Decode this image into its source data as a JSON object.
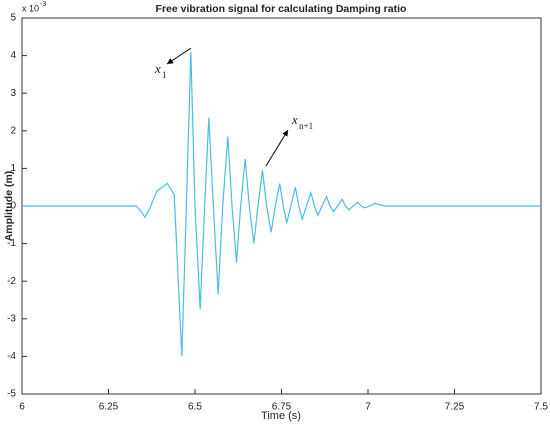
{
  "chart_data": {
    "type": "line",
    "title": "Free vibration signal for calculating Damping ratio",
    "x_label": "Time (s)",
    "y_label": "Amplitude (m)",
    "y_exponent": {
      "base": "x 10",
      "power": "-3"
    },
    "annotations": [
      {
        "text": "x",
        "sub": "1"
      },
      {
        "text": "x",
        "sub": "n+1"
      }
    ],
    "x": [
      6,
      6.05,
      6.1,
      6.15,
      6.2,
      6.25,
      6.3,
      6.33,
      6.345,
      6.355,
      6.37,
      6.39,
      6.42,
      6.44,
      6.462,
      6.475,
      6.488,
      6.5,
      6.515,
      6.528,
      6.54,
      6.553,
      6.567,
      6.58,
      6.595,
      6.607,
      6.62,
      6.632,
      6.645,
      6.657,
      6.67,
      6.682,
      6.695,
      6.707,
      6.72,
      6.732,
      6.745,
      6.755,
      6.765,
      6.777,
      6.79,
      6.8,
      6.81,
      6.822,
      6.835,
      6.845,
      6.855,
      6.867,
      6.88,
      6.89,
      6.9,
      6.912,
      6.925,
      6.935,
      6.945,
      6.957,
      6.97,
      6.98,
      6.99,
      7.005,
      7.02,
      7.05,
      7.1,
      7.2,
      7.3,
      7.4,
      7.5
    ],
    "series": [
      {
        "color": "#4bbde0",
        "values": [
          0,
          0,
          0,
          0,
          0,
          0,
          0,
          0,
          -0.15,
          -0.3,
          -0.05,
          0.4,
          0.6,
          0.3,
          -4.0,
          0,
          4.1,
          0,
          -2.75,
          0,
          2.35,
          0,
          -2.35,
          0,
          1.85,
          0,
          -1.5,
          0,
          1.25,
          0,
          -1.0,
          0,
          0.95,
          0,
          -0.7,
          0,
          0.6,
          0,
          -0.45,
          0,
          0.5,
          0,
          -0.35,
          0,
          0.35,
          0,
          -0.25,
          0,
          0.25,
          0,
          -0.15,
          0,
          0.18,
          0,
          -0.1,
          0,
          0.1,
          0,
          -0.05,
          0,
          0.07,
          0,
          0,
          0,
          0,
          0,
          0
        ]
      }
    ],
    "xlim": [
      6,
      7.5
    ],
    "xticks": [
      6,
      6.25,
      6.5,
      6.75,
      7,
      7.25,
      7.5
    ],
    "ylim": [
      -5,
      5
    ],
    "yticks": [
      -5,
      -4,
      -3,
      -2,
      -1,
      0,
      1,
      2,
      3,
      4,
      5
    ],
    "grid": false
  }
}
